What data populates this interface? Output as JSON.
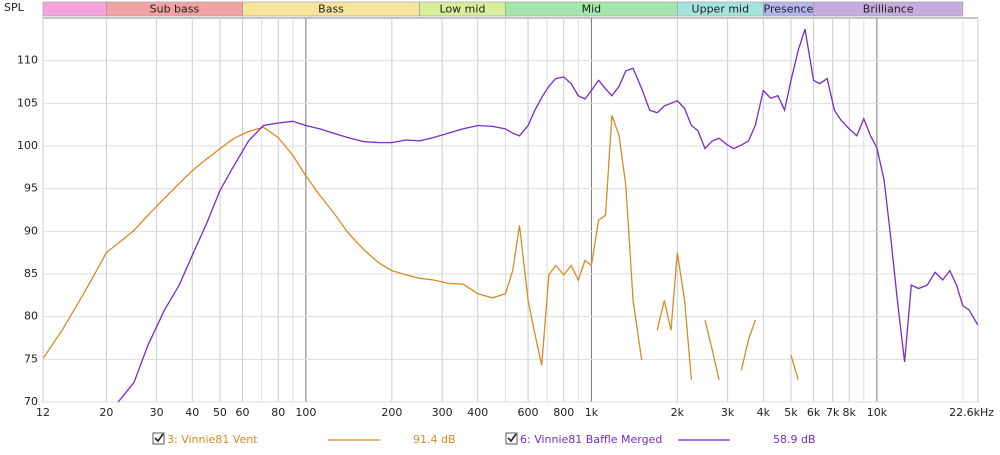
{
  "chart_data": {
    "type": "line",
    "y_axis_label": "SPL",
    "xscale": "log",
    "xlim": [
      12,
      22600
    ],
    "xticks": [
      12,
      20,
      30,
      40,
      50,
      60,
      80,
      100,
      200,
      300,
      400,
      600,
      800,
      {
        "value": 1000,
        "label": "1k"
      },
      {
        "value": 2000,
        "label": "2k"
      },
      {
        "value": 3000,
        "label": "3k"
      },
      {
        "value": 4000,
        "label": "4k"
      },
      {
        "value": 5000,
        "label": "5k"
      },
      {
        "value": 6000,
        "label": "6k"
      },
      {
        "value": 7000,
        "label": "7k"
      },
      {
        "value": 8000,
        "label": "8k"
      },
      {
        "value": 10000,
        "label": "10k"
      },
      {
        "value": 22600,
        "label": "22.6kHz"
      }
    ],
    "xminor": [
      70,
      90,
      500,
      700,
      900,
      9000,
      20000
    ],
    "ylim": [
      70,
      115
    ],
    "yticks": [
      70,
      75,
      80,
      85,
      90,
      95,
      100,
      105,
      110
    ],
    "grid": true,
    "bands": {
      "labels": [
        null,
        "Sub bass",
        "Bass",
        "Low mid",
        "Mid",
        "Upper mid",
        "Presence",
        "Brilliance"
      ],
      "edges": [
        12,
        20,
        60,
        250,
        500,
        2000,
        4000,
        6000,
        20000
      ],
      "colors": [
        "#f4a4dc",
        "#f2a2a2",
        "#f6e39c",
        "#d8ee9c",
        "#a4e6ac",
        "#a4e4dc",
        "#b4b4ee",
        "#c4acde"
      ]
    },
    "x": [
      12,
      14,
      16,
      18,
      20,
      22,
      25,
      28,
      32,
      36,
      40,
      45,
      50,
      56,
      63,
      71,
      80,
      90,
      100,
      112,
      125,
      140,
      160,
      180,
      200,
      224,
      250,
      280,
      315,
      355,
      400,
      450,
      500,
      530,
      560,
      600,
      630,
      670,
      710,
      750,
      800,
      850,
      900,
      950,
      1000,
      1060,
      1120,
      1180,
      1250,
      1320,
      1400,
      1500,
      1600,
      1700,
      1800,
      1900,
      2000,
      2120,
      2240,
      2360,
      2500,
      2650,
      2800,
      3000,
      3150,
      3350,
      3550,
      3750,
      4000,
      4250,
      4500,
      4750,
      5000,
      5300,
      5600,
      6000,
      6300,
      6700,
      7100,
      7500,
      8000,
      8500,
      9000,
      9500,
      10000,
      10600,
      11200,
      11800,
      12500,
      13200,
      14000,
      15000,
      16000,
      17000,
      18000,
      19000,
      20000,
      21000,
      22600
    ],
    "series": [
      {
        "name": "3: Vinnie81 Vent",
        "color": "#d98b23",
        "level": "91.4 dB",
        "values": [
          75.1,
          78.4,
          81.7,
          84.7,
          87.5,
          88.6,
          90.1,
          91.9,
          93.9,
          95.6,
          97.1,
          98.5,
          99.7,
          100.9,
          101.7,
          102.2,
          101,
          98.9,
          96.5,
          94.2,
          92.2,
          89.9,
          87.8,
          86.3,
          85.4,
          84.9,
          84.5,
          84.3,
          83.9,
          83.8,
          82.7,
          82.2,
          82.7,
          85.4,
          90.7,
          81.9,
          78.4,
          74.3,
          84.9,
          86,
          84.9,
          86,
          84.3,
          86.6,
          86,
          91.3,
          91.9,
          103.6,
          101.2,
          95.4,
          81.9,
          74.9,
          null,
          78.4,
          81.9,
          78.4,
          87.5,
          81.9,
          72.6,
          null,
          79.6,
          76.1,
          72.6,
          null,
          null,
          73.7,
          77.3,
          79.6,
          null,
          null,
          null,
          null,
          75.5,
          72.6,
          null,
          null,
          null,
          null,
          null,
          null,
          null,
          null,
          null,
          null,
          null,
          null,
          null,
          null,
          null,
          null,
          null,
          null,
          null,
          null,
          null,
          null,
          null,
          null,
          null
        ]
      },
      {
        "name": "6: Vinnie81 Baffle Merged",
        "color": "#7b2bc6",
        "level": "58.9 dB",
        "values": [
          null,
          null,
          null,
          null,
          null,
          70,
          72.3,
          76.7,
          80.8,
          83.7,
          87.2,
          91,
          94.8,
          97.7,
          100.6,
          102.4,
          102.7,
          102.9,
          102.4,
          102,
          101.5,
          101,
          100.5,
          100.4,
          100.4,
          100.7,
          100.6,
          101,
          101.5,
          102,
          102.4,
          102.3,
          102,
          101.5,
          101.2,
          102.4,
          104,
          105.7,
          107,
          107.9,
          108.1,
          107.3,
          105.9,
          105.5,
          106.5,
          107.7,
          106.7,
          105.9,
          107,
          108.8,
          109.1,
          106.7,
          104.2,
          103.9,
          104.7,
          105,
          105.3,
          104.4,
          102.4,
          101.8,
          99.7,
          100.6,
          100.9,
          100.1,
          99.7,
          100.1,
          100.6,
          102.4,
          106.5,
          105.6,
          105.9,
          104.2,
          107.7,
          111.2,
          113.7,
          107.7,
          107.3,
          107.9,
          104.2,
          103,
          102,
          101.2,
          103.2,
          101.2,
          99.8,
          96,
          89,
          81.9,
          74.7,
          83.7,
          83.3,
          83.7,
          85.2,
          84.3,
          85.4,
          83.7,
          81.3,
          80.8,
          79
        ]
      }
    ]
  }
}
